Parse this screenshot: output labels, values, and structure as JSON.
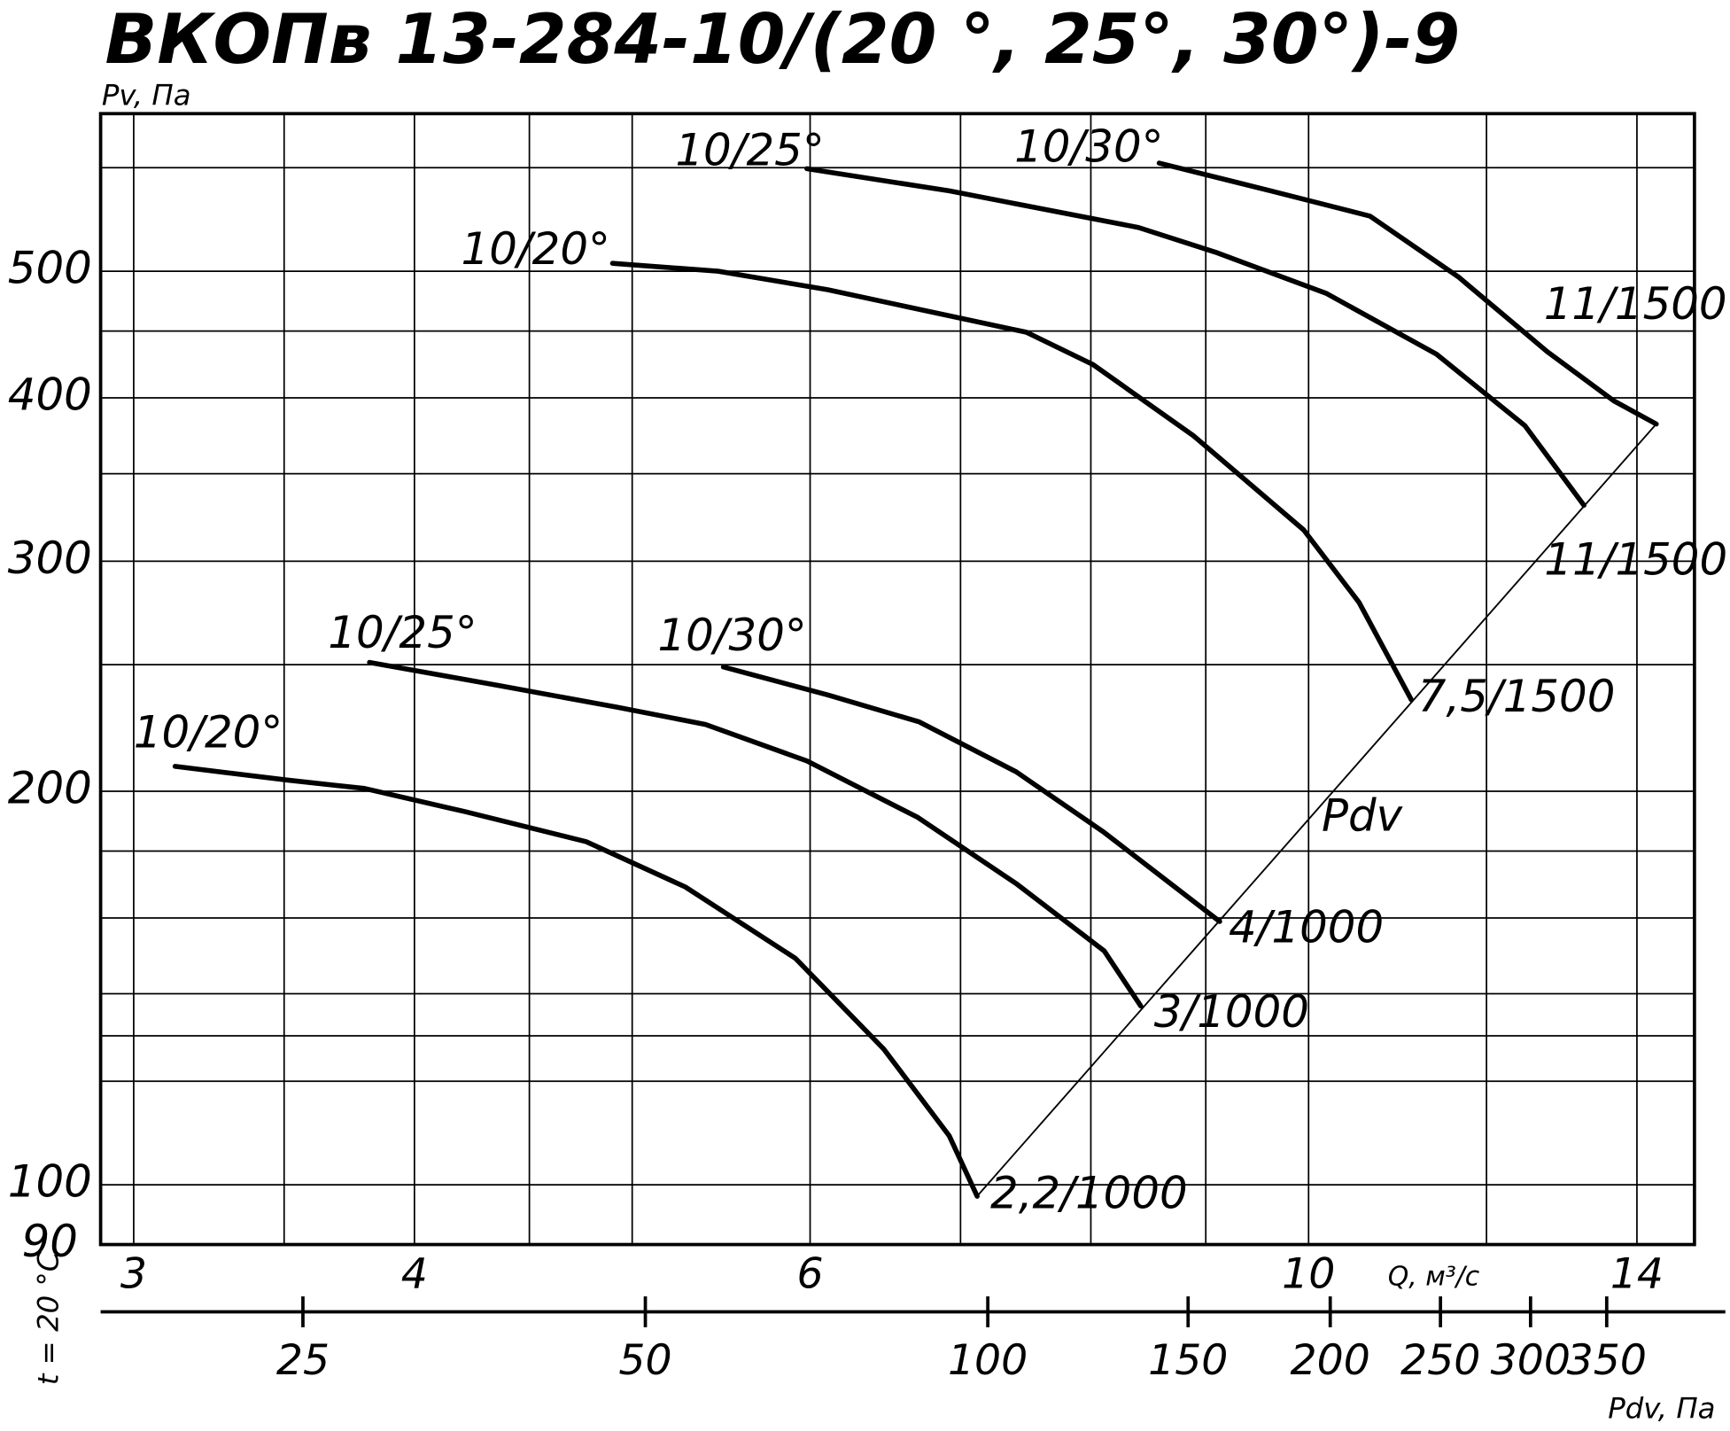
{
  "chart_data": {
    "type": "line",
    "title": "ВКОПв 13-284-10/(20 °, 25°, 30°)-9",
    "y_label": "Pv, Па",
    "x_label": "Q, м³/с",
    "x2_label": "Pdv, Па",
    "side_label": "t = 20 °C",
    "line_label": "Pdv",
    "log_x": true,
    "log_y": true,
    "grid": true,
    "xlim": [
      2.9,
      14.85
    ],
    "xticks": [
      3,
      4,
      6,
      10,
      14
    ],
    "xgrid": [
      3.5,
      4.5,
      5,
      7,
      8,
      9,
      12
    ],
    "ylim": [
      90,
      660
    ],
    "yticks": [
      90,
      100,
      200,
      300,
      400,
      500
    ],
    "ygrid": [
      120,
      130,
      140,
      160,
      180,
      250,
      350,
      450,
      600
    ],
    "x2lim": [
      16.6,
      445
    ],
    "x2ticks": [
      25,
      50,
      100,
      150,
      200,
      250,
      300,
      350
    ],
    "series": [
      {
        "name": "10/20°",
        "end_label": "2,2/1000",
        "color": "#000000",
        "x": [
          3.13,
          3.51,
          3.8,
          4.21,
          4.77,
          5.28,
          5.91,
          6.47,
          6.92,
          7.12
        ],
        "values": [
          209,
          204,
          201,
          193,
          183,
          169,
          149,
          127,
          109,
          98
        ]
      },
      {
        "name": "10/25°",
        "end_label": "3/1000",
        "color": "#000000",
        "x": [
          3.82,
          4.36,
          4.92,
          5.39,
          5.98,
          6.7,
          7.41,
          8.11,
          8.42
        ],
        "values": [
          251,
          241,
          232,
          225,
          211,
          191,
          170,
          151,
          137
        ]
      },
      {
        "name": "10/30°",
        "end_label": "4/1000",
        "color": "#000000",
        "x": [
          5.49,
          6.11,
          6.71,
          7.41,
          8.11,
          8.68,
          9.13
        ],
        "values": [
          249,
          237,
          226,
          207,
          186,
          170,
          159
        ]
      },
      {
        "name": "10/20°",
        "end_label": "7,5/1500",
        "color": "#000000",
        "x": [
          4.9,
          5.46,
          6.11,
          6.85,
          7.49,
          8.02,
          8.89,
          9.95,
          10.53,
          11.11
        ],
        "values": [
          507,
          500,
          484,
          464,
          449,
          424,
          374,
          317,
          279,
          235
        ]
      },
      {
        "name": "10/25°",
        "end_label": "11/1500",
        "color": "#000000",
        "x": [
          5.98,
          6.92,
          8.4,
          9.09,
          10.18,
          11.4,
          12.48,
          13.26
        ],
        "values": [
          599,
          576,
          540,
          517,
          481,
          432,
          381,
          331
        ]
      },
      {
        "name": "10/30°",
        "end_label": "11/1500",
        "color": "#000000",
        "x": [
          8.58,
          9.62,
          10.65,
          11.66,
          12.77,
          13.67,
          14.28
        ],
        "values": [
          605,
          576,
          551,
          495,
          434,
          398,
          382
        ]
      }
    ]
  }
}
